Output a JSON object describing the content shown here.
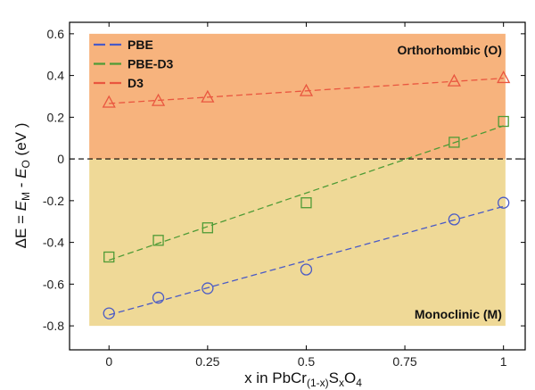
{
  "chart_data": {
    "type": "scatter",
    "x": [
      0,
      0.125,
      0.25,
      0.5,
      0.875,
      1
    ],
    "series": [
      {
        "name": "PBE",
        "marker": "circle",
        "color": "#4a5ac6",
        "values": [
          -0.74,
          -0.665,
          -0.62,
          -0.53,
          -0.29,
          -0.21
        ]
      },
      {
        "name": "PBE-D3",
        "marker": "square",
        "color": "#4f9b36",
        "values": [
          -0.47,
          -0.39,
          -0.33,
          -0.21,
          0.08,
          0.18
        ]
      },
      {
        "name": "D3",
        "marker": "triangle",
        "color": "#e9563f",
        "values": [
          0.27,
          0.278,
          0.295,
          0.325,
          0.372,
          0.388
        ]
      }
    ],
    "trendline": "linear",
    "xlabel": [
      {
        "text": "x in PbCr"
      },
      {
        "text": "(1-x)",
        "style": "sub"
      },
      {
        "text": "S"
      },
      {
        "text": "x",
        "style": "sub"
      },
      {
        "text": "O"
      },
      {
        "text": "4",
        "style": "sub"
      }
    ],
    "ylabel": [
      {
        "text": "ΔE = "
      },
      {
        "text": "E",
        "style": "italic"
      },
      {
        "text": "M",
        "style": "sub"
      },
      {
        "text": " - "
      },
      {
        "text": "E",
        "style": "italic"
      },
      {
        "text": "O",
        "style": "sub"
      },
      {
        "text": " (eV )"
      }
    ],
    "xticks": [
      "0",
      "0.25",
      "0.5",
      "0.75",
      "1"
    ],
    "yticks": [
      "0.6",
      "0.4",
      "0.2",
      "0",
      "-0.2",
      "-0.4",
      "-0.6",
      "-0.8"
    ],
    "xlim": [
      -0.1,
      1.055
    ],
    "ylim": [
      -0.915,
      0.655
    ],
    "regions": [
      {
        "label": "Orthorhombic (O)",
        "x": [
          -0.05,
          1.005
        ],
        "y": [
          0,
          0.6
        ],
        "color": "#f7b37d",
        "label_position": "top-right"
      },
      {
        "label": "Monoclinic (M)",
        "x": [
          -0.05,
          1.005
        ],
        "y": [
          -0.8,
          0
        ],
        "color": "#efd997",
        "label_position": "bottom-right"
      }
    ],
    "reference_line": {
      "y": 0,
      "style": "dashed",
      "color": "#000000"
    },
    "legend_position": "top-left",
    "grid": false
  }
}
